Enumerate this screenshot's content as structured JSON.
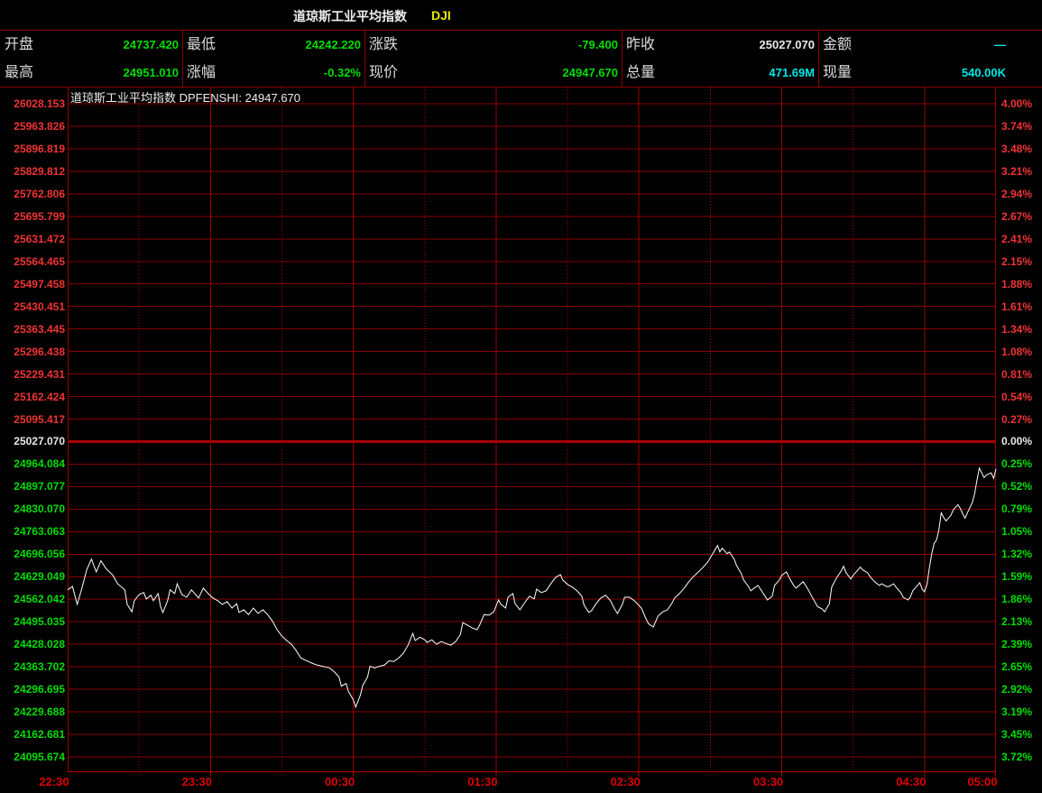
{
  "window": {
    "title": "道琼斯工业平均指数",
    "symbol": "DJI"
  },
  "header": {
    "rows": [
      [
        {
          "label": "开盘",
          "value": "24737.420",
          "color": "green"
        },
        {
          "label": "最低",
          "value": "24242.220",
          "color": "green"
        },
        {
          "label": "涨跌",
          "value": "-79.400",
          "color": "green"
        },
        {
          "label": "昨收",
          "value": "25027.070",
          "color": "white"
        },
        {
          "label": "金额",
          "value": "—",
          "color": "cyan"
        }
      ],
      [
        {
          "label": "最高",
          "value": "24951.010",
          "color": "green"
        },
        {
          "label": "涨幅",
          "value": "-0.32%",
          "color": "green"
        },
        {
          "label": "现价",
          "value": "24947.670",
          "color": "green"
        },
        {
          "label": "总量",
          "value": "471.69M",
          "color": "cyan"
        },
        {
          "label": "现量",
          "value": "540.00K",
          "color": "cyan"
        }
      ]
    ]
  },
  "chart": {
    "overlay_label": "道琼斯工业平均指数 DPFENSHI: 24947.670"
  },
  "colors": {
    "green": "#00dd00",
    "red": "#f03434",
    "white": "#e8e8e8",
    "cyan": "#00e5e5",
    "yellow": "#e8e800",
    "grid": "#870000",
    "grid_strong": "#9b0000",
    "prev_close_line": "#aa0000",
    "axis_line": "#c00000",
    "time_text": "#dd0000",
    "price_line": "#ffffff",
    "background": "#000000"
  },
  "chart_data": {
    "type": "line",
    "title": "道琼斯工业平均指数 DPFENSHI",
    "prev_close": 25027.07,
    "current": 24947.67,
    "open": 24737.42,
    "high": 24951.01,
    "low": 24242.22,
    "change": -79.4,
    "change_pct": "-0.32%",
    "x_ticks": [
      "22:30",
      "23:30",
      "00:30",
      "01:30",
      "02:30",
      "03:30",
      "04:30",
      "05:00"
    ],
    "x_range_minutes": [
      0,
      390
    ],
    "left_axis": [
      "26028.153",
      "25963.826",
      "25896.819",
      "25829.812",
      "25762.806",
      "25695.799",
      "25631.472",
      "25564.465",
      "25497.458",
      "25430.451",
      "25363.445",
      "25296.438",
      "25229.431",
      "25162.424",
      "25095.417",
      "25027.070",
      "24964.084",
      "24897.077",
      "24830.070",
      "24763.063",
      "24696.056",
      "24629.049",
      "24562.042",
      "24495.035",
      "24428.028",
      "24363.702",
      "24296.695",
      "24229.688",
      "24162.681",
      "24095.674"
    ],
    "right_axis": [
      "4.00%",
      "3.74%",
      "3.48%",
      "3.21%",
      "2.94%",
      "2.67%",
      "2.41%",
      "2.15%",
      "1.88%",
      "1.61%",
      "1.34%",
      "1.08%",
      "0.81%",
      "0.54%",
      "0.27%",
      "0.00%",
      "0.25%",
      "0.52%",
      "0.79%",
      "1.05%",
      "1.32%",
      "1.59%",
      "1.86%",
      "2.13%",
      "2.39%",
      "2.65%",
      "2.92%",
      "3.19%",
      "3.45%",
      "3.72%"
    ],
    "series": [
      {
        "name": "DPFENSHI",
        "points": [
          [
            0,
            24590
          ],
          [
            2,
            24600
          ],
          [
            4,
            24547
          ],
          [
            6,
            24595
          ],
          [
            8,
            24649
          ],
          [
            10,
            24681
          ],
          [
            11,
            24662
          ],
          [
            12,
            24643
          ],
          [
            14,
            24676
          ],
          [
            16,
            24654
          ],
          [
            19,
            24633
          ],
          [
            21,
            24608
          ],
          [
            24,
            24590
          ],
          [
            25,
            24547
          ],
          [
            27,
            24525
          ],
          [
            28,
            24558
          ],
          [
            30,
            24576
          ],
          [
            32,
            24582
          ],
          [
            33,
            24563
          ],
          [
            35,
            24574
          ],
          [
            36,
            24558
          ],
          [
            38,
            24579
          ],
          [
            39,
            24541
          ],
          [
            40,
            24523
          ],
          [
            42,
            24558
          ],
          [
            43,
            24590
          ],
          [
            45,
            24579
          ],
          [
            46,
            24608
          ],
          [
            48,
            24576
          ],
          [
            50,
            24568
          ],
          [
            52,
            24590
          ],
          [
            54,
            24574
          ],
          [
            55,
            24566
          ],
          [
            57,
            24595
          ],
          [
            59,
            24579
          ],
          [
            61,
            24566
          ],
          [
            63,
            24558
          ],
          [
            65,
            24547
          ],
          [
            67,
            24555
          ],
          [
            69,
            24536
          ],
          [
            71,
            24549
          ],
          [
            72,
            24523
          ],
          [
            74,
            24531
          ],
          [
            76,
            24517
          ],
          [
            78,
            24536
          ],
          [
            80,
            24520
          ],
          [
            82,
            24531
          ],
          [
            84,
            24517
          ],
          [
            86,
            24498
          ],
          [
            88,
            24472
          ],
          [
            90,
            24453
          ],
          [
            92,
            24440
          ],
          [
            94,
            24429
          ],
          [
            96,
            24410
          ],
          [
            98,
            24388
          ],
          [
            101,
            24378
          ],
          [
            103,
            24372
          ],
          [
            105,
            24367
          ],
          [
            107,
            24364
          ],
          [
            110,
            24359
          ],
          [
            112,
            24348
          ],
          [
            114,
            24332
          ],
          [
            115,
            24305
          ],
          [
            117,
            24313
          ],
          [
            118,
            24289
          ],
          [
            120,
            24265
          ],
          [
            121,
            24243
          ],
          [
            123,
            24279
          ],
          [
            124,
            24308
          ],
          [
            126,
            24332
          ],
          [
            127,
            24364
          ],
          [
            129,
            24359
          ],
          [
            131,
            24364
          ],
          [
            133,
            24367
          ],
          [
            135,
            24380
          ],
          [
            137,
            24378
          ],
          [
            139,
            24388
          ],
          [
            141,
            24402
          ],
          [
            143,
            24426
          ],
          [
            145,
            24461
          ],
          [
            146,
            24440
          ],
          [
            148,
            24450
          ],
          [
            150,
            24442
          ],
          [
            151,
            24434
          ],
          [
            153,
            24442
          ],
          [
            155,
            24429
          ],
          [
            157,
            24437
          ],
          [
            159,
            24431
          ],
          [
            161,
            24426
          ],
          [
            163,
            24437
          ],
          [
            165,
            24458
          ],
          [
            166,
            24493
          ],
          [
            168,
            24485
          ],
          [
            170,
            24477
          ],
          [
            172,
            24472
          ],
          [
            173,
            24485
          ],
          [
            175,
            24517
          ],
          [
            177,
            24515
          ],
          [
            179,
            24525
          ],
          [
            181,
            24560
          ],
          [
            182,
            24547
          ],
          [
            184,
            24536
          ],
          [
            185,
            24568
          ],
          [
            187,
            24579
          ],
          [
            188,
            24549
          ],
          [
            190,
            24531
          ],
          [
            192,
            24552
          ],
          [
            194,
            24571
          ],
          [
            196,
            24563
          ],
          [
            197,
            24592
          ],
          [
            199,
            24582
          ],
          [
            201,
            24587
          ],
          [
            203,
            24608
          ],
          [
            205,
            24627
          ],
          [
            207,
            24635
          ],
          [
            208,
            24619
          ],
          [
            210,
            24606
          ],
          [
            212,
            24598
          ],
          [
            214,
            24587
          ],
          [
            216,
            24571
          ],
          [
            217,
            24544
          ],
          [
            219,
            24523
          ],
          [
            220,
            24528
          ],
          [
            222,
            24549
          ],
          [
            224,
            24566
          ],
          [
            226,
            24574
          ],
          [
            228,
            24558
          ],
          [
            230,
            24531
          ],
          [
            231,
            24520
          ],
          [
            233,
            24547
          ],
          [
            234,
            24568
          ],
          [
            236,
            24568
          ],
          [
            238,
            24558
          ],
          [
            240,
            24544
          ],
          [
            241,
            24536
          ],
          [
            243,
            24504
          ],
          [
            244,
            24490
          ],
          [
            246,
            24480
          ],
          [
            248,
            24512
          ],
          [
            250,
            24525
          ],
          [
            252,
            24531
          ],
          [
            254,
            24552
          ],
          [
            255,
            24566
          ],
          [
            257,
            24579
          ],
          [
            259,
            24595
          ],
          [
            261,
            24614
          ],
          [
            263,
            24630
          ],
          [
            265,
            24643
          ],
          [
            267,
            24657
          ],
          [
            269,
            24673
          ],
          [
            271,
            24697
          ],
          [
            273,
            24721
          ],
          [
            274,
            24702
          ],
          [
            275,
            24713
          ],
          [
            277,
            24697
          ],
          [
            278,
            24702
          ],
          [
            280,
            24681
          ],
          [
            281,
            24662
          ],
          [
            283,
            24638
          ],
          [
            284,
            24619
          ],
          [
            286,
            24600
          ],
          [
            287,
            24587
          ],
          [
            289,
            24598
          ],
          [
            290,
            24603
          ],
          [
            292,
            24582
          ],
          [
            294,
            24560
          ],
          [
            296,
            24571
          ],
          [
            297,
            24603
          ],
          [
            299,
            24619
          ],
          [
            300,
            24633
          ],
          [
            302,
            24643
          ],
          [
            303,
            24627
          ],
          [
            305,
            24603
          ],
          [
            306,
            24595
          ],
          [
            308,
            24608
          ],
          [
            309,
            24614
          ],
          [
            311,
            24592
          ],
          [
            313,
            24566
          ],
          [
            315,
            24541
          ],
          [
            317,
            24533
          ],
          [
            318,
            24525
          ],
          [
            320,
            24549
          ],
          [
            321,
            24598
          ],
          [
            323,
            24625
          ],
          [
            325,
            24646
          ],
          [
            326,
            24660
          ],
          [
            327,
            24641
          ],
          [
            329,
            24622
          ],
          [
            330,
            24633
          ],
          [
            332,
            24649
          ],
          [
            333,
            24657
          ],
          [
            334,
            24649
          ],
          [
            336,
            24641
          ],
          [
            337,
            24630
          ],
          [
            339,
            24614
          ],
          [
            341,
            24603
          ],
          [
            342,
            24608
          ],
          [
            344,
            24600
          ],
          [
            345,
            24600
          ],
          [
            347,
            24608
          ],
          [
            348,
            24598
          ],
          [
            350,
            24582
          ],
          [
            351,
            24568
          ],
          [
            353,
            24560
          ],
          [
            354,
            24568
          ],
          [
            355,
            24587
          ],
          [
            357,
            24603
          ],
          [
            358,
            24611
          ],
          [
            359,
            24592
          ],
          [
            360,
            24584
          ],
          [
            361,
            24606
          ],
          [
            362,
            24654
          ],
          [
            363,
            24697
          ],
          [
            364,
            24727
          ],
          [
            365,
            24737
          ],
          [
            366,
            24767
          ],
          [
            367,
            24818
          ],
          [
            368,
            24804
          ],
          [
            369,
            24794
          ],
          [
            371,
            24810
          ],
          [
            372,
            24826
          ],
          [
            373,
            24834
          ],
          [
            374,
            24842
          ],
          [
            375,
            24831
          ],
          [
            376,
            24815
          ],
          [
            377,
            24802
          ],
          [
            378,
            24818
          ],
          [
            380,
            24847
          ],
          [
            381,
            24874
          ],
          [
            382,
            24914
          ],
          [
            383,
            24950
          ],
          [
            384,
            24936
          ],
          [
            385,
            24922
          ],
          [
            386,
            24930
          ],
          [
            388,
            24936
          ],
          [
            389,
            24920
          ],
          [
            390,
            24948
          ]
        ]
      }
    ]
  }
}
